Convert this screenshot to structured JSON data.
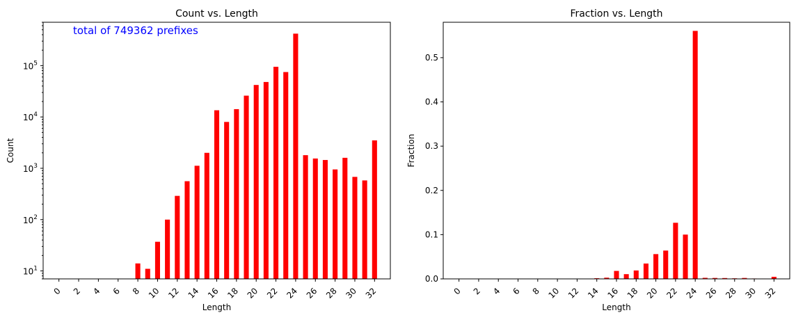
{
  "chart_data": [
    {
      "type": "bar",
      "title": "Count vs. Length",
      "xlabel": "Length",
      "ylabel": "Count",
      "yscale": "log",
      "ylim": [
        7,
        700000
      ],
      "annotation": "total of 749362 prefixes",
      "annotation_color": "#0000ff",
      "bar_color": "#ff0000",
      "grid": false,
      "x": [
        0,
        1,
        2,
        3,
        4,
        5,
        6,
        7,
        8,
        9,
        10,
        11,
        12,
        13,
        14,
        15,
        16,
        17,
        18,
        19,
        20,
        21,
        22,
        23,
        24,
        25,
        26,
        27,
        28,
        29,
        30,
        31,
        32
      ],
      "values": [
        0,
        0,
        0,
        0,
        0,
        0,
        0,
        0,
        14,
        11,
        37,
        100,
        290,
        560,
        1120,
        2000,
        13500,
        8000,
        14200,
        26000,
        42000,
        48000,
        95000,
        75000,
        420000,
        1800,
        1550,
        1450,
        950,
        1600,
        680,
        580,
        3500
      ],
      "xticks": [
        "0",
        "2",
        "4",
        "6",
        "8",
        "10",
        "12",
        "14",
        "16",
        "18",
        "20",
        "22",
        "24",
        "26",
        "28",
        "30",
        "32"
      ],
      "yticks": [
        {
          "base": "10",
          "exp": "1"
        },
        {
          "base": "10",
          "exp": "2"
        },
        {
          "base": "10",
          "exp": "3"
        },
        {
          "base": "10",
          "exp": "4"
        },
        {
          "base": "10",
          "exp": "5"
        }
      ]
    },
    {
      "type": "bar",
      "title": "Fraction vs. Length",
      "xlabel": "Length",
      "ylabel": "Fraction",
      "yscale": "linear",
      "ylim": [
        0,
        0.58
      ],
      "bar_color": "#ff0000",
      "grid": false,
      "x": [
        0,
        1,
        2,
        3,
        4,
        5,
        6,
        7,
        8,
        9,
        10,
        11,
        12,
        13,
        14,
        15,
        16,
        17,
        18,
        19,
        20,
        21,
        22,
        23,
        24,
        25,
        26,
        27,
        28,
        29,
        30,
        31,
        32
      ],
      "values": [
        0,
        0,
        0,
        0,
        0,
        0,
        0,
        0,
        0,
        0,
        0,
        0,
        0,
        0.0007,
        0.0015,
        0.0027,
        0.018,
        0.0107,
        0.019,
        0.0347,
        0.056,
        0.064,
        0.1268,
        0.1001,
        0.5605,
        0.0024,
        0.0021,
        0.0019,
        0.0013,
        0.0021,
        0.0009,
        0.0008,
        0.0047
      ],
      "xticks": [
        "0",
        "2",
        "4",
        "6",
        "8",
        "10",
        "12",
        "14",
        "16",
        "18",
        "20",
        "22",
        "24",
        "26",
        "28",
        "30",
        "32"
      ],
      "yticks": [
        "0.0",
        "0.1",
        "0.2",
        "0.3",
        "0.4",
        "0.5"
      ]
    }
  ]
}
